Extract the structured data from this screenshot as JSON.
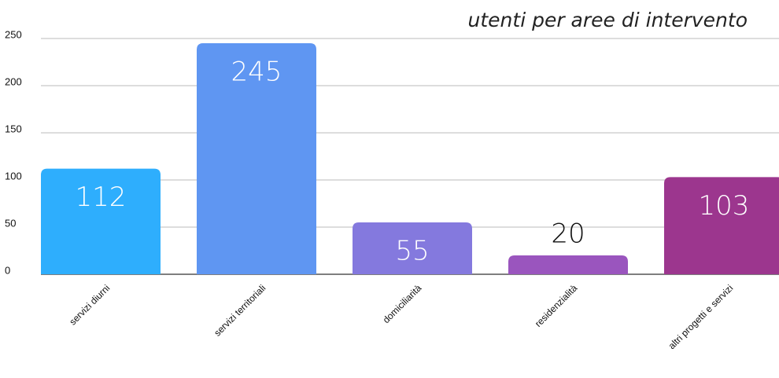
{
  "chart_data": {
    "type": "bar",
    "title": "utenti per aree di intervento",
    "categories": [
      "servizi diurni",
      "servizi territoriali",
      "domiciliarità",
      "residenzialità",
      "altri progetti e servizi"
    ],
    "values": [
      112,
      245,
      55,
      20,
      103
    ],
    "colors": [
      "#2eaefd",
      "#5f96f2",
      "#8479de",
      "#9a55be",
      "#9c368e"
    ],
    "ylim": [
      0,
      250
    ],
    "yticks": [
      0,
      50,
      100,
      150,
      200,
      250
    ],
    "grid": true
  }
}
